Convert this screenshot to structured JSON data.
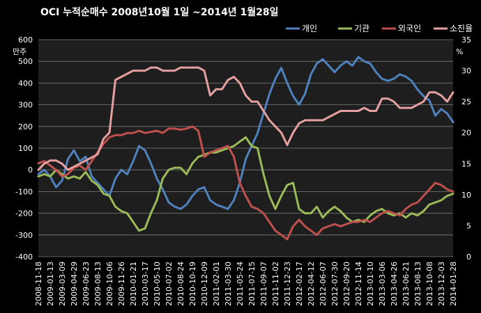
{
  "chart_data": {
    "type": "line",
    "title": "OCI  누적순매수   2008년10월 1일 ~2014년 1월28일",
    "y_left_unit": "만주",
    "y_right_unit": "%",
    "ylim_left": [
      -400,
      600
    ],
    "yticks_left": [
      "600",
      "500",
      "400",
      "300",
      "200",
      "100",
      "0",
      "-100",
      "-200",
      "-300",
      "-400"
    ],
    "ylim_right": [
      0,
      35
    ],
    "yticks_right": [
      "35",
      "30",
      "25",
      "20",
      "15",
      "10",
      "5",
      "0"
    ],
    "x_tick_labels": [
      "2008-11-18",
      "2009-01-13",
      "2009-03-09",
      "2009-04-29",
      "2009-06-23",
      "2009-08-13",
      "2009-10-06",
      "2009-11-26",
      "2010-01-21",
      "2010-03-17",
      "2010-05-10",
      "2010-07-02",
      "2010-08-24",
      "2010-10-19",
      "2010-12-09",
      "2011-02-01",
      "2011-03-30",
      "2011-05-24",
      "2011-07-15",
      "2011-09-07",
      "2011-11-02",
      "2011-12-23",
      "2012-02-17",
      "2012-04-12",
      "2012-06-07",
      "2012-07-30",
      "2012-09-20",
      "2012-11-14",
      "2013-01-10",
      "2013-03-06",
      "2013-04-26",
      "2013-06-21",
      "2013-08-13",
      "2013-10-08",
      "2013-12-03",
      "2014-01-28"
    ],
    "grid": true,
    "legend_position": "top-right",
    "x_index_max": 35,
    "series": [
      {
        "name": "개인",
        "axis": "left",
        "color": "#4f81bd",
        "points": [
          [
            0,
            -20
          ],
          [
            0.5,
            0
          ],
          [
            1,
            -30
          ],
          [
            1.5,
            -80
          ],
          [
            2,
            -50
          ],
          [
            2.5,
            50
          ],
          [
            3,
            90
          ],
          [
            3.5,
            40
          ],
          [
            4,
            60
          ],
          [
            4.5,
            -30
          ],
          [
            5,
            -60
          ],
          [
            5.5,
            -90
          ],
          [
            6,
            -120
          ],
          [
            6.5,
            -40
          ],
          [
            7,
            0
          ],
          [
            7.5,
            -20
          ],
          [
            8,
            40
          ],
          [
            8.5,
            110
          ],
          [
            9,
            90
          ],
          [
            9.5,
            30
          ],
          [
            10,
            -40
          ],
          [
            10.5,
            -90
          ],
          [
            11,
            -150
          ],
          [
            11.5,
            -170
          ],
          [
            12,
            -180
          ],
          [
            12.5,
            -160
          ],
          [
            13,
            -120
          ],
          [
            13.5,
            -90
          ],
          [
            14,
            -80
          ],
          [
            14.5,
            -140
          ],
          [
            15,
            -160
          ],
          [
            15.5,
            -170
          ],
          [
            16,
            -180
          ],
          [
            16.5,
            -140
          ],
          [
            17,
            -60
          ],
          [
            17.5,
            50
          ],
          [
            18,
            110
          ],
          [
            18.5,
            170
          ],
          [
            19,
            260
          ],
          [
            19.5,
            350
          ],
          [
            20,
            420
          ],
          [
            20.5,
            470
          ],
          [
            21,
            400
          ],
          [
            21.5,
            340
          ],
          [
            22,
            300
          ],
          [
            22.5,
            350
          ],
          [
            23,
            440
          ],
          [
            23.5,
            490
          ],
          [
            24,
            510
          ],
          [
            24.5,
            480
          ],
          [
            25,
            450
          ],
          [
            25.5,
            480
          ],
          [
            26,
            500
          ],
          [
            26.5,
            480
          ],
          [
            27,
            520
          ],
          [
            27.5,
            500
          ],
          [
            28,
            490
          ],
          [
            28.5,
            450
          ],
          [
            29,
            420
          ],
          [
            29.5,
            410
          ],
          [
            30,
            420
          ],
          [
            30.5,
            440
          ],
          [
            31,
            430
          ],
          [
            31.5,
            410
          ],
          [
            32,
            370
          ],
          [
            32.5,
            340
          ],
          [
            33,
            320
          ],
          [
            33.5,
            250
          ],
          [
            34,
            280
          ],
          [
            34.5,
            260
          ],
          [
            35,
            220
          ]
        ]
      },
      {
        "name": "기관",
        "axis": "left",
        "color": "#9bbb59",
        "points": [
          [
            0,
            -30
          ],
          [
            0.5,
            -20
          ],
          [
            1,
            -30
          ],
          [
            1.5,
            0
          ],
          [
            2,
            -20
          ],
          [
            2.5,
            -40
          ],
          [
            3,
            -30
          ],
          [
            3.5,
            -40
          ],
          [
            4,
            -10
          ],
          [
            4.5,
            -50
          ],
          [
            5,
            -70
          ],
          [
            5.5,
            -110
          ],
          [
            6,
            -120
          ],
          [
            6.5,
            -170
          ],
          [
            7,
            -190
          ],
          [
            7.5,
            -200
          ],
          [
            8,
            -240
          ],
          [
            8.5,
            -280
          ],
          [
            9,
            -270
          ],
          [
            9.5,
            -200
          ],
          [
            10,
            -140
          ],
          [
            10.5,
            -40
          ],
          [
            11,
            0
          ],
          [
            11.5,
            10
          ],
          [
            12,
            10
          ],
          [
            12.5,
            -20
          ],
          [
            13,
            30
          ],
          [
            13.5,
            60
          ],
          [
            14,
            70
          ],
          [
            14.5,
            80
          ],
          [
            15,
            80
          ],
          [
            15.5,
            90
          ],
          [
            16,
            100
          ],
          [
            16.5,
            110
          ],
          [
            17,
            130
          ],
          [
            17.5,
            150
          ],
          [
            18,
            110
          ],
          [
            18.5,
            100
          ],
          [
            19,
            -20
          ],
          [
            19.5,
            -120
          ],
          [
            20,
            -180
          ],
          [
            20.5,
            -120
          ],
          [
            21,
            -70
          ],
          [
            21.5,
            -60
          ],
          [
            22,
            -180
          ],
          [
            22.5,
            -200
          ],
          [
            23,
            -200
          ],
          [
            23.5,
            -170
          ],
          [
            24,
            -220
          ],
          [
            24.5,
            -190
          ],
          [
            25,
            -170
          ],
          [
            25.5,
            -190
          ],
          [
            26,
            -220
          ],
          [
            26.5,
            -240
          ],
          [
            27,
            -230
          ],
          [
            27.5,
            -240
          ],
          [
            28,
            -210
          ],
          [
            28.5,
            -190
          ],
          [
            29,
            -180
          ],
          [
            29.5,
            -200
          ],
          [
            30,
            -210
          ],
          [
            30.5,
            -200
          ],
          [
            31,
            -220
          ],
          [
            31.5,
            -200
          ],
          [
            32,
            -210
          ],
          [
            32.5,
            -190
          ],
          [
            33,
            -160
          ],
          [
            33.5,
            -150
          ],
          [
            34,
            -140
          ],
          [
            34.5,
            -120
          ],
          [
            35,
            -110
          ]
        ]
      },
      {
        "name": "외국인",
        "axis": "left",
        "color": "#c0504d",
        "points": [
          [
            0,
            30
          ],
          [
            0.5,
            40
          ],
          [
            1,
            20
          ],
          [
            1.5,
            0
          ],
          [
            2,
            -30
          ],
          [
            2.5,
            -20
          ],
          [
            3,
            10
          ],
          [
            3.5,
            20
          ],
          [
            4,
            0
          ],
          [
            4.5,
            40
          ],
          [
            5,
            80
          ],
          [
            5.5,
            120
          ],
          [
            6,
            150
          ],
          [
            6.5,
            160
          ],
          [
            7,
            160
          ],
          [
            7.5,
            170
          ],
          [
            8,
            170
          ],
          [
            8.5,
            180
          ],
          [
            9,
            170
          ],
          [
            9.5,
            175
          ],
          [
            10,
            180
          ],
          [
            10.5,
            170
          ],
          [
            11,
            190
          ],
          [
            11.5,
            190
          ],
          [
            12,
            185
          ],
          [
            12.5,
            190
          ],
          [
            13,
            200
          ],
          [
            13.5,
            180
          ],
          [
            14,
            60
          ],
          [
            14.5,
            80
          ],
          [
            15,
            90
          ],
          [
            15.5,
            100
          ],
          [
            16,
            110
          ],
          [
            16.5,
            60
          ],
          [
            17,
            -60
          ],
          [
            17.5,
            -120
          ],
          [
            18,
            -170
          ],
          [
            18.5,
            -180
          ],
          [
            19,
            -200
          ],
          [
            19.5,
            -240
          ],
          [
            20,
            -280
          ],
          [
            20.5,
            -300
          ],
          [
            21,
            -320
          ],
          [
            21.5,
            -260
          ],
          [
            22,
            -230
          ],
          [
            22.5,
            -260
          ],
          [
            23,
            -280
          ],
          [
            23.5,
            -300
          ],
          [
            24,
            -270
          ],
          [
            24.5,
            -260
          ],
          [
            25,
            -250
          ],
          [
            25.5,
            -260
          ],
          [
            26,
            -250
          ],
          [
            26.5,
            -240
          ],
          [
            27,
            -240
          ],
          [
            27.5,
            -230
          ],
          [
            28,
            -240
          ],
          [
            28.5,
            -220
          ],
          [
            29,
            -200
          ],
          [
            29.5,
            -190
          ],
          [
            30,
            -200
          ],
          [
            30.5,
            -210
          ],
          [
            31,
            -180
          ],
          [
            31.5,
            -160
          ],
          [
            32,
            -150
          ],
          [
            32.5,
            -120
          ],
          [
            33,
            -90
          ],
          [
            33.5,
            -60
          ],
          [
            34,
            -70
          ],
          [
            34.5,
            -90
          ],
          [
            35,
            -100
          ]
        ]
      },
      {
        "name": "소진율",
        "axis": "right",
        "color": "#e6a0a0",
        "points": [
          [
            0,
            14
          ],
          [
            0.5,
            15
          ],
          [
            1,
            15.5
          ],
          [
            1.5,
            15.5
          ],
          [
            2,
            15
          ],
          [
            2.5,
            14
          ],
          [
            3,
            14.5
          ],
          [
            3.5,
            15
          ],
          [
            4,
            15.5
          ],
          [
            4.5,
            16
          ],
          [
            5,
            16.5
          ],
          [
            5.5,
            19
          ],
          [
            6,
            20
          ],
          [
            6.5,
            28.5
          ],
          [
            7,
            29
          ],
          [
            7.5,
            29.5
          ],
          [
            8,
            30
          ],
          [
            8.5,
            30
          ],
          [
            9,
            30
          ],
          [
            9.5,
            30.5
          ],
          [
            10,
            30.5
          ],
          [
            10.5,
            30
          ],
          [
            11,
            30
          ],
          [
            11.5,
            30
          ],
          [
            12,
            30.5
          ],
          [
            12.5,
            30.5
          ],
          [
            13,
            30.5
          ],
          [
            13.5,
            30.5
          ],
          [
            14,
            30
          ],
          [
            14.5,
            26
          ],
          [
            15,
            27
          ],
          [
            15.5,
            27
          ],
          [
            16,
            28.5
          ],
          [
            16.5,
            29
          ],
          [
            17,
            28
          ],
          [
            17.5,
            26
          ],
          [
            18,
            25
          ],
          [
            18.5,
            25
          ],
          [
            19,
            23.5
          ],
          [
            19.5,
            22
          ],
          [
            20,
            21
          ],
          [
            20.5,
            20
          ],
          [
            21,
            18
          ],
          [
            21.5,
            20
          ],
          [
            22,
            21.5
          ],
          [
            22.5,
            22
          ],
          [
            23,
            22
          ],
          [
            23.5,
            22
          ],
          [
            24,
            22
          ],
          [
            24.5,
            22.5
          ],
          [
            25,
            23
          ],
          [
            25.5,
            23.5
          ],
          [
            26,
            23.5
          ],
          [
            26.5,
            23.5
          ],
          [
            27,
            23.5
          ],
          [
            27.5,
            24
          ],
          [
            28,
            23.5
          ],
          [
            28.5,
            23.5
          ],
          [
            29,
            25.5
          ],
          [
            29.5,
            25.5
          ],
          [
            30,
            25
          ],
          [
            30.5,
            24
          ],
          [
            31,
            24
          ],
          [
            31.5,
            24
          ],
          [
            32,
            24.5
          ],
          [
            32.5,
            25
          ],
          [
            33,
            26.5
          ],
          [
            33.5,
            26.5
          ],
          [
            34,
            26
          ],
          [
            34.5,
            25
          ],
          [
            35,
            26.5
          ]
        ]
      }
    ]
  }
}
